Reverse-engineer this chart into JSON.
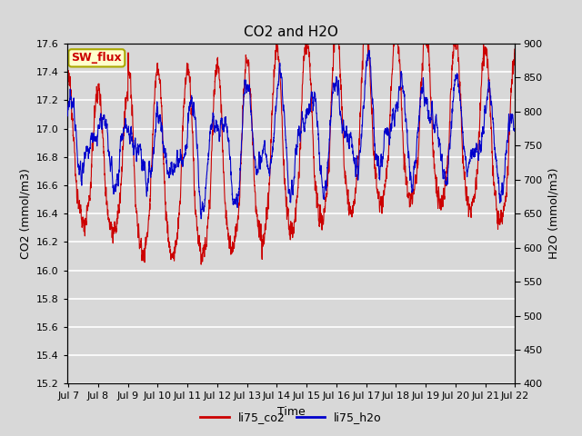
{
  "title": "CO2 and H2O",
  "xlabel": "Time",
  "ylabel_left": "CO2 (mmol/m3)",
  "ylabel_right": "H2O (mmol/m3)",
  "ylim_left": [
    15.2,
    17.6
  ],
  "ylim_right": [
    400,
    900
  ],
  "yticks_left": [
    15.2,
    15.4,
    15.6,
    15.8,
    16.0,
    16.2,
    16.4,
    16.6,
    16.8,
    17.0,
    17.2,
    17.4,
    17.6
  ],
  "yticks_right": [
    400,
    450,
    500,
    550,
    600,
    650,
    700,
    750,
    800,
    850,
    900
  ],
  "co2_color": "#cc0000",
  "h2o_color": "#0000cc",
  "legend_labels": [
    "li75_co2",
    "li75_h2o"
  ],
  "sw_flux_label": "SW_flux",
  "sw_flux_bg": "#ffffcc",
  "sw_flux_border": "#aaa800",
  "sw_flux_text_color": "#cc0000",
  "background_color": "#d8d8d8",
  "plot_bg_color": "#d8d8d8",
  "grid_color": "#ffffff",
  "n_points": 3000,
  "x_start_days": 6.95,
  "x_end_days": 22.0,
  "xtick_positions": [
    7,
    8,
    9,
    10,
    11,
    12,
    13,
    14,
    15,
    16,
    17,
    18,
    19,
    20,
    21,
    22
  ],
  "xtick_labels": [
    "Jul 7",
    "Jul 8",
    "Jul 9",
    "Jul 10",
    "Jul 11",
    "Jul 12",
    "Jul 13",
    "Jul 14",
    "Jul 15",
    "Jul 16",
    "Jul 17",
    "Jul 18",
    "Jul 19",
    "Jul 20",
    "Jul 21",
    "Jul 22"
  ],
  "title_fontsize": 11,
  "axis_label_fontsize": 9,
  "tick_fontsize": 8,
  "legend_fontsize": 9,
  "linewidth": 0.8
}
